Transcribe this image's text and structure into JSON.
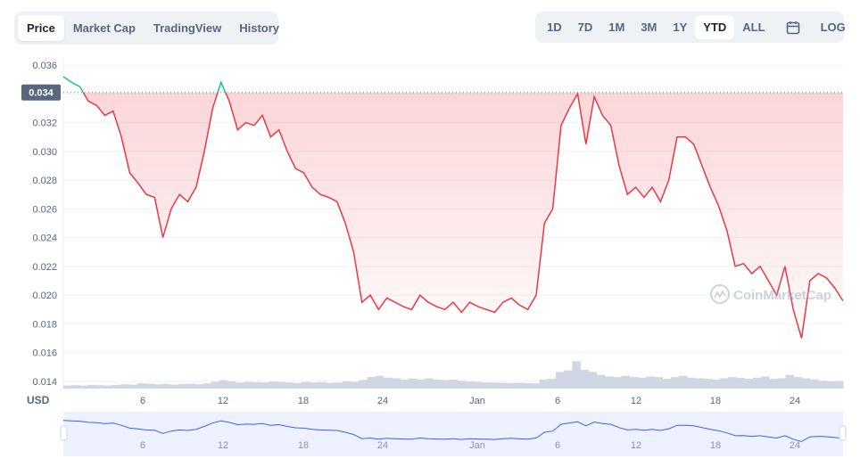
{
  "tabs": [
    {
      "label": "Price"
    },
    {
      "label": "Market Cap"
    },
    {
      "label": "TradingView"
    },
    {
      "label": "History"
    }
  ],
  "ranges": [
    {
      "label": "1D"
    },
    {
      "label": "7D"
    },
    {
      "label": "1M"
    },
    {
      "label": "3M"
    },
    {
      "label": "1Y"
    },
    {
      "label": "YTD"
    },
    {
      "label": "ALL"
    }
  ],
  "log_label": "LOG",
  "currency_label": "USD",
  "watermark": "CoinMarketCap",
  "colors": {
    "up": "#16c784",
    "down": "#ea3943",
    "volume": "#cfd6e4",
    "navigator": "#3861fb"
  },
  "chart_data": {
    "type": "line",
    "y_ticks": [
      "0.036",
      "0.034",
      "0.032",
      "0.030",
      "0.028",
      "0.026",
      "0.024",
      "0.022",
      "0.020",
      "0.018",
      "0.016",
      "0.014"
    ],
    "ylim": [
      0.0135,
      0.0365
    ],
    "x_ticks": [
      "6",
      "12",
      "18",
      "24",
      "Jan",
      "6",
      "12",
      "18",
      "24"
    ],
    "reference_value": 0.0341,
    "reference_label": "0.034",
    "series": [
      {
        "values": [
          0.0352,
          0.0348,
          0.0345,
          0.0335,
          0.0332,
          0.0325,
          0.0328,
          0.031,
          0.0285,
          0.0278,
          0.027,
          0.0268,
          0.024,
          0.026,
          0.027,
          0.0265,
          0.0275,
          0.03,
          0.033,
          0.0348,
          0.0335,
          0.0315,
          0.032,
          0.0318,
          0.0325,
          0.031,
          0.0315,
          0.03,
          0.0288,
          0.0285,
          0.0275,
          0.027,
          0.0268,
          0.0265,
          0.025,
          0.023,
          0.0195,
          0.02,
          0.019,
          0.0198,
          0.0195,
          0.0192,
          0.019,
          0.02,
          0.0195,
          0.0192,
          0.019,
          0.0195,
          0.0188,
          0.0195,
          0.0192,
          0.019,
          0.0188,
          0.0195,
          0.0198,
          0.0193,
          0.019,
          0.02,
          0.025,
          0.026,
          0.0318,
          0.033,
          0.034,
          0.0305,
          0.0338,
          0.0325,
          0.0318,
          0.029,
          0.027,
          0.0275,
          0.0268,
          0.0275,
          0.0265,
          0.028,
          0.031,
          0.031,
          0.0305,
          0.029,
          0.0275,
          0.0262,
          0.0245,
          0.022,
          0.0222,
          0.0215,
          0.022,
          0.021,
          0.02,
          0.022,
          0.019,
          0.017,
          0.021,
          0.0215,
          0.0212,
          0.0205,
          0.0196
        ]
      }
    ],
    "volume": [
      0.1,
      0.11,
      0.1,
      0.12,
      0.11,
      0.1,
      0.12,
      0.14,
      0.13,
      0.18,
      0.16,
      0.14,
      0.15,
      0.13,
      0.15,
      0.16,
      0.14,
      0.17,
      0.22,
      0.28,
      0.24,
      0.2,
      0.22,
      0.21,
      0.2,
      0.23,
      0.22,
      0.2,
      0.18,
      0.22,
      0.2,
      0.21,
      0.19,
      0.2,
      0.24,
      0.22,
      0.28,
      0.38,
      0.42,
      0.36,
      0.34,
      0.3,
      0.33,
      0.3,
      0.34,
      0.3,
      0.28,
      0.3,
      0.26,
      0.24,
      0.22,
      0.2,
      0.2,
      0.19,
      0.18,
      0.19,
      0.18,
      0.17,
      0.3,
      0.32,
      0.55,
      0.6,
      0.9,
      0.62,
      0.55,
      0.45,
      0.4,
      0.38,
      0.42,
      0.38,
      0.36,
      0.4,
      0.38,
      0.32,
      0.38,
      0.42,
      0.36,
      0.34,
      0.32,
      0.3,
      0.34,
      0.38,
      0.35,
      0.32,
      0.36,
      0.4,
      0.32,
      0.34,
      0.45,
      0.38,
      0.34,
      0.3,
      0.26,
      0.24,
      0.25
    ]
  }
}
